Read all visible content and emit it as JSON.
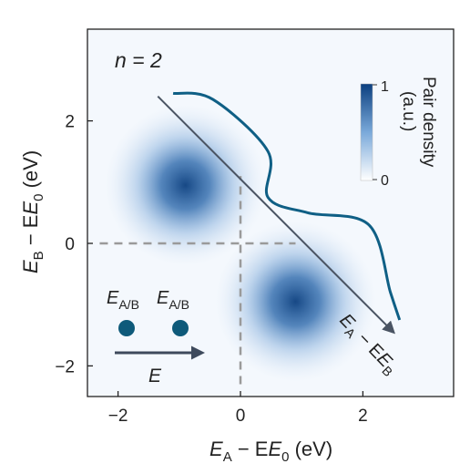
{
  "chart_data": {
    "type": "heatmap",
    "annotation_n": "n = 2",
    "xlabel": {
      "main": "E",
      "sub1": "A",
      "mid": " − E",
      "sub2": "0",
      "unit": " (eV)"
    },
    "ylabel": {
      "main": "E",
      "sub1": "B",
      "mid": " − E",
      "sub2": "0",
      "unit": " (eV)"
    },
    "xlim": [
      -2.5,
      3.5
    ],
    "ylim": [
      -2.5,
      3.5
    ],
    "x_ticks": [
      -2,
      0,
      2
    ],
    "x_tick_labels": [
      "−2",
      "0",
      "2"
    ],
    "y_ticks": [
      -2,
      0,
      2
    ],
    "y_tick_labels": [
      "−2",
      "0",
      "2"
    ],
    "blobs": [
      {
        "x": -0.9,
        "y": 0.95,
        "sigma_x": 0.6,
        "sigma_y": 0.6,
        "amplitude": 1.0
      },
      {
        "x": 0.9,
        "y": -0.95,
        "sigma_x": 0.6,
        "sigma_y": 0.6,
        "amplitude": 1.0
      }
    ],
    "crosshair": {
      "x": 0,
      "y": 0,
      "x_range": [
        -2.3,
        0.9
      ],
      "y_range": [
        -2.3,
        1.1
      ]
    },
    "diagonal_arrow": {
      "from": [
        -1.35,
        2.4
      ],
      "to": [
        2.5,
        -1.45
      ],
      "label": {
        "main": "E",
        "sub1": "A",
        "mid": " − E",
        "sub2": "B"
      }
    },
    "potential_curve": [
      [
        -1.1,
        2.45
      ],
      [
        -0.45,
        2.35
      ],
      [
        0.45,
        1.5
      ],
      [
        0.45,
        0.75
      ],
      [
        1.1,
        0.5
      ],
      [
        2.1,
        0.3
      ],
      [
        2.45,
        -0.8
      ],
      [
        2.6,
        -1.25
      ]
    ],
    "colorbar": {
      "title": "Pair density",
      "unit": "(a.u.)",
      "max_label": "1",
      "min_label": "0",
      "color_low": "#ffffff",
      "color_high": "#0b3f7f"
    },
    "inset": {
      "particle_label_main": "E",
      "particle_label_sub": "A/B",
      "field_label": "E",
      "dot_color": "#0e5a7a",
      "arrow_color": "#3e4a5c"
    },
    "colors": {
      "heat_high": "#0b3f7f",
      "curve": "#0f5f85",
      "arrow": "#4a5463",
      "dash": "#9a9a9a"
    }
  }
}
